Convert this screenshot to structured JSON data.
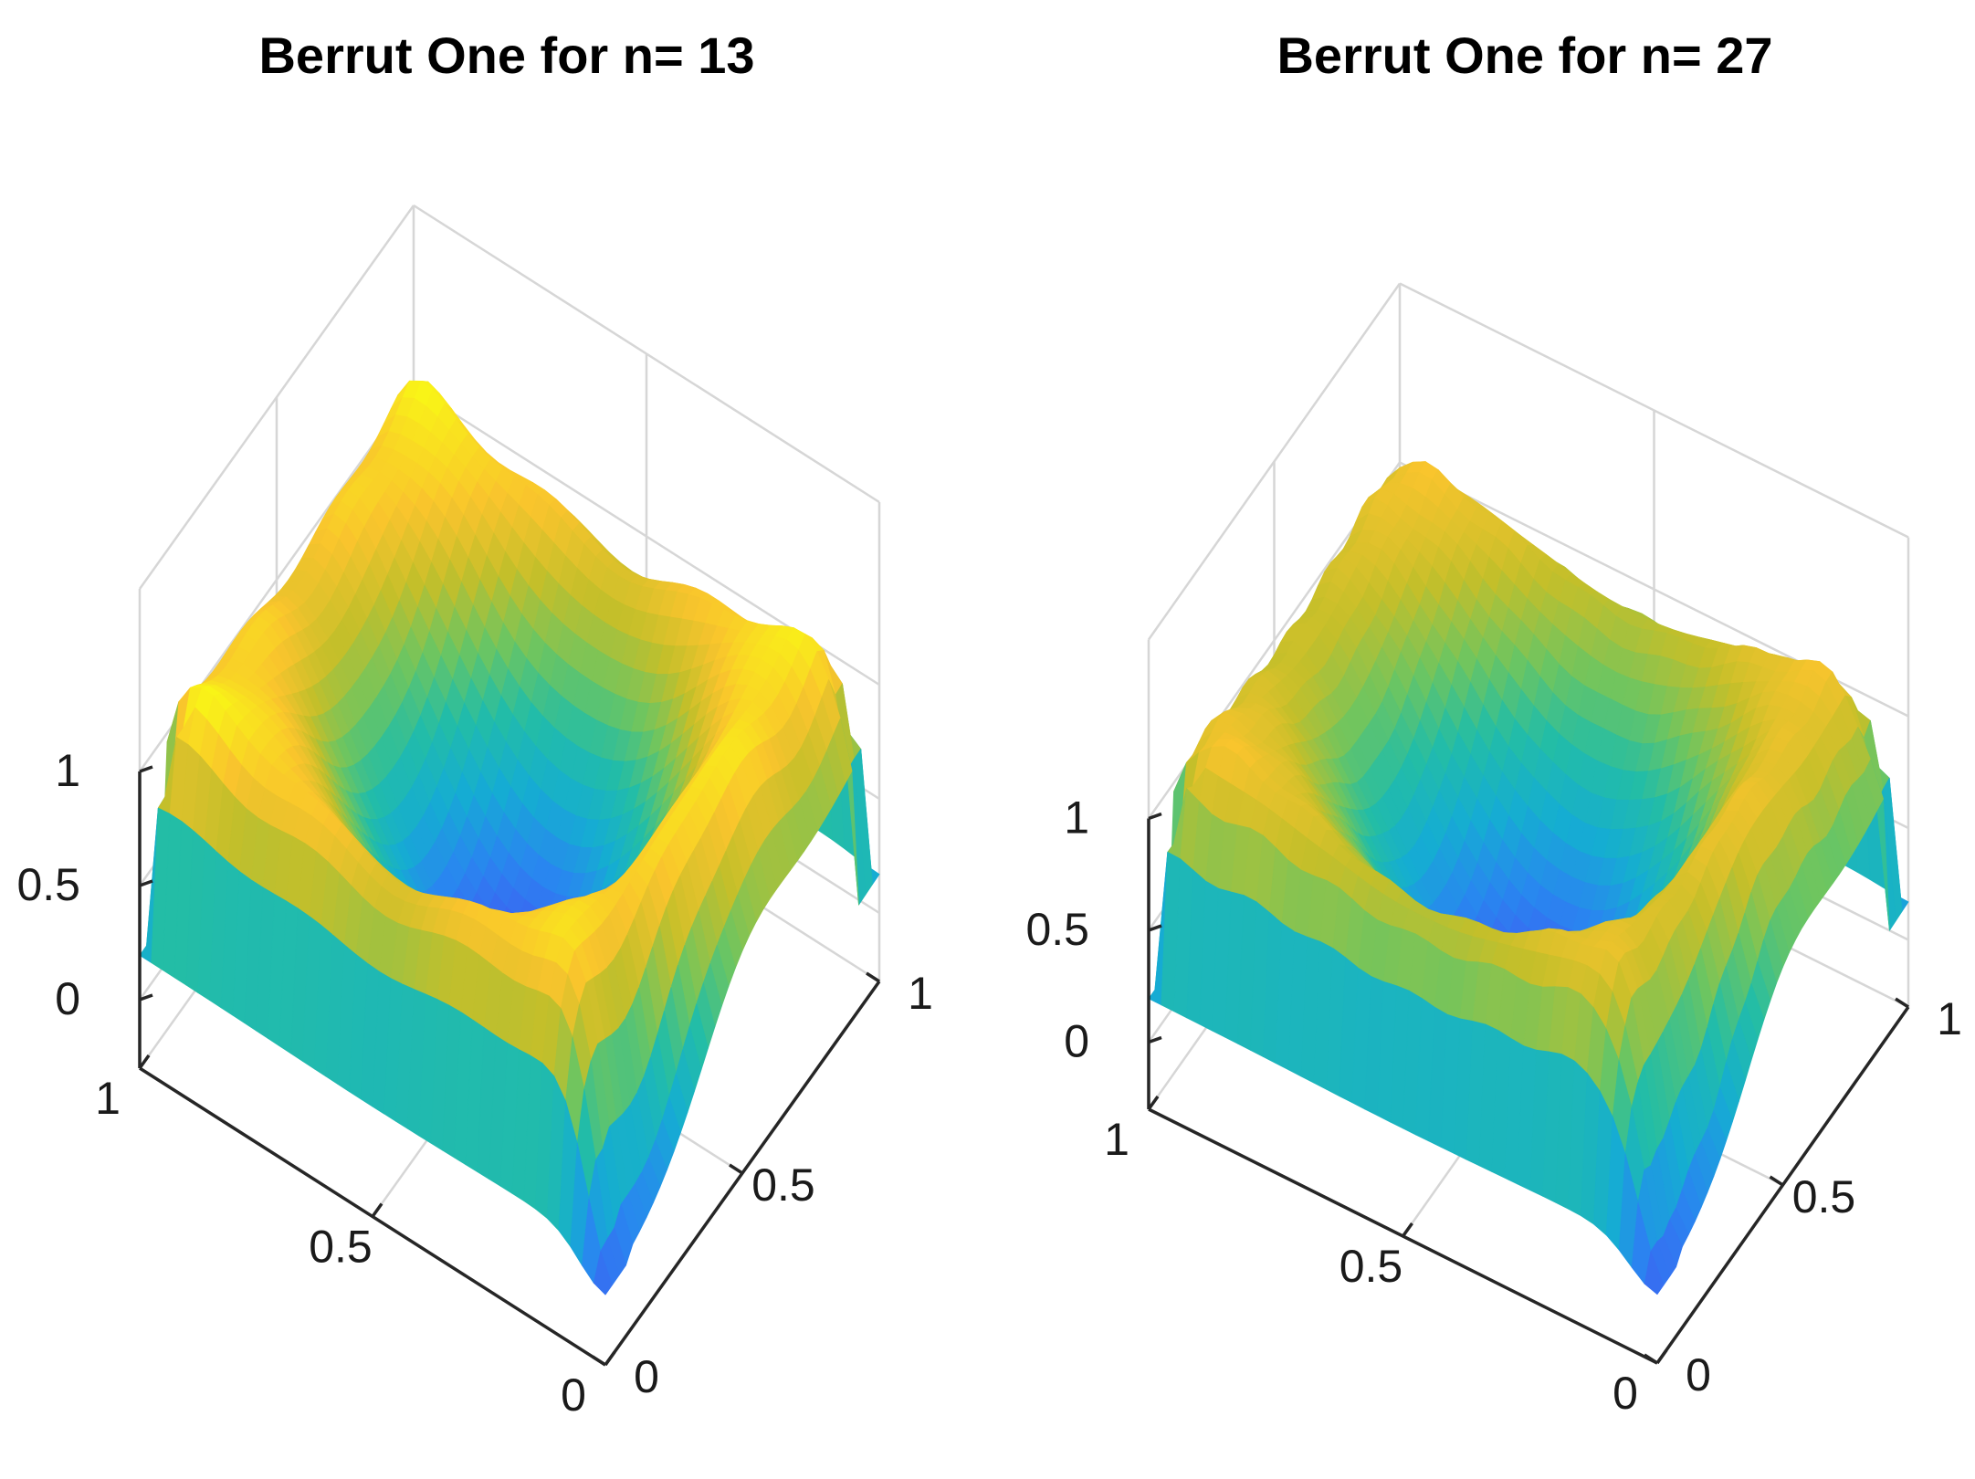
{
  "chart_data": [
    {
      "type": "surface",
      "title": "Berrut One for n= 13",
      "colormap": "parula",
      "grid": true,
      "x_ticks": [
        0,
        0.5,
        1
      ],
      "y_ticks": [
        0,
        0.5,
        1
      ],
      "z_ticks": [
        0,
        0.5,
        1
      ],
      "x_tick_labels": [
        "0",
        "0.5",
        "1"
      ],
      "y_tick_labels": [
        "0",
        "0.5",
        "1"
      ],
      "z_tick_labels": [
        "0",
        "0.5",
        "1"
      ],
      "xlim": [
        0,
        1
      ],
      "ylim": [
        0,
        1
      ],
      "zlim": [
        -0.3,
        1.8
      ],
      "surface_z_range": [
        -0.27,
        1.3
      ],
      "n": 13
    },
    {
      "type": "surface",
      "title": "Berrut One for n= 27",
      "colormap": "parula",
      "grid": true,
      "x_ticks": [
        0,
        0.5,
        1
      ],
      "y_ticks": [
        0,
        0.5,
        1
      ],
      "z_ticks": [
        0,
        0.5,
        1
      ],
      "x_tick_labels": [
        "0",
        "0.5",
        "1"
      ],
      "y_tick_labels": [
        "0",
        "0.5",
        "1"
      ],
      "z_tick_labels": [
        "0",
        "0.5",
        "1"
      ],
      "xlim": [
        0,
        1
      ],
      "ylim": [
        0,
        1
      ],
      "zlim": [
        -0.3,
        1.8
      ],
      "surface_z_range": [
        -0.3,
        1.5
      ],
      "n": 27
    }
  ]
}
